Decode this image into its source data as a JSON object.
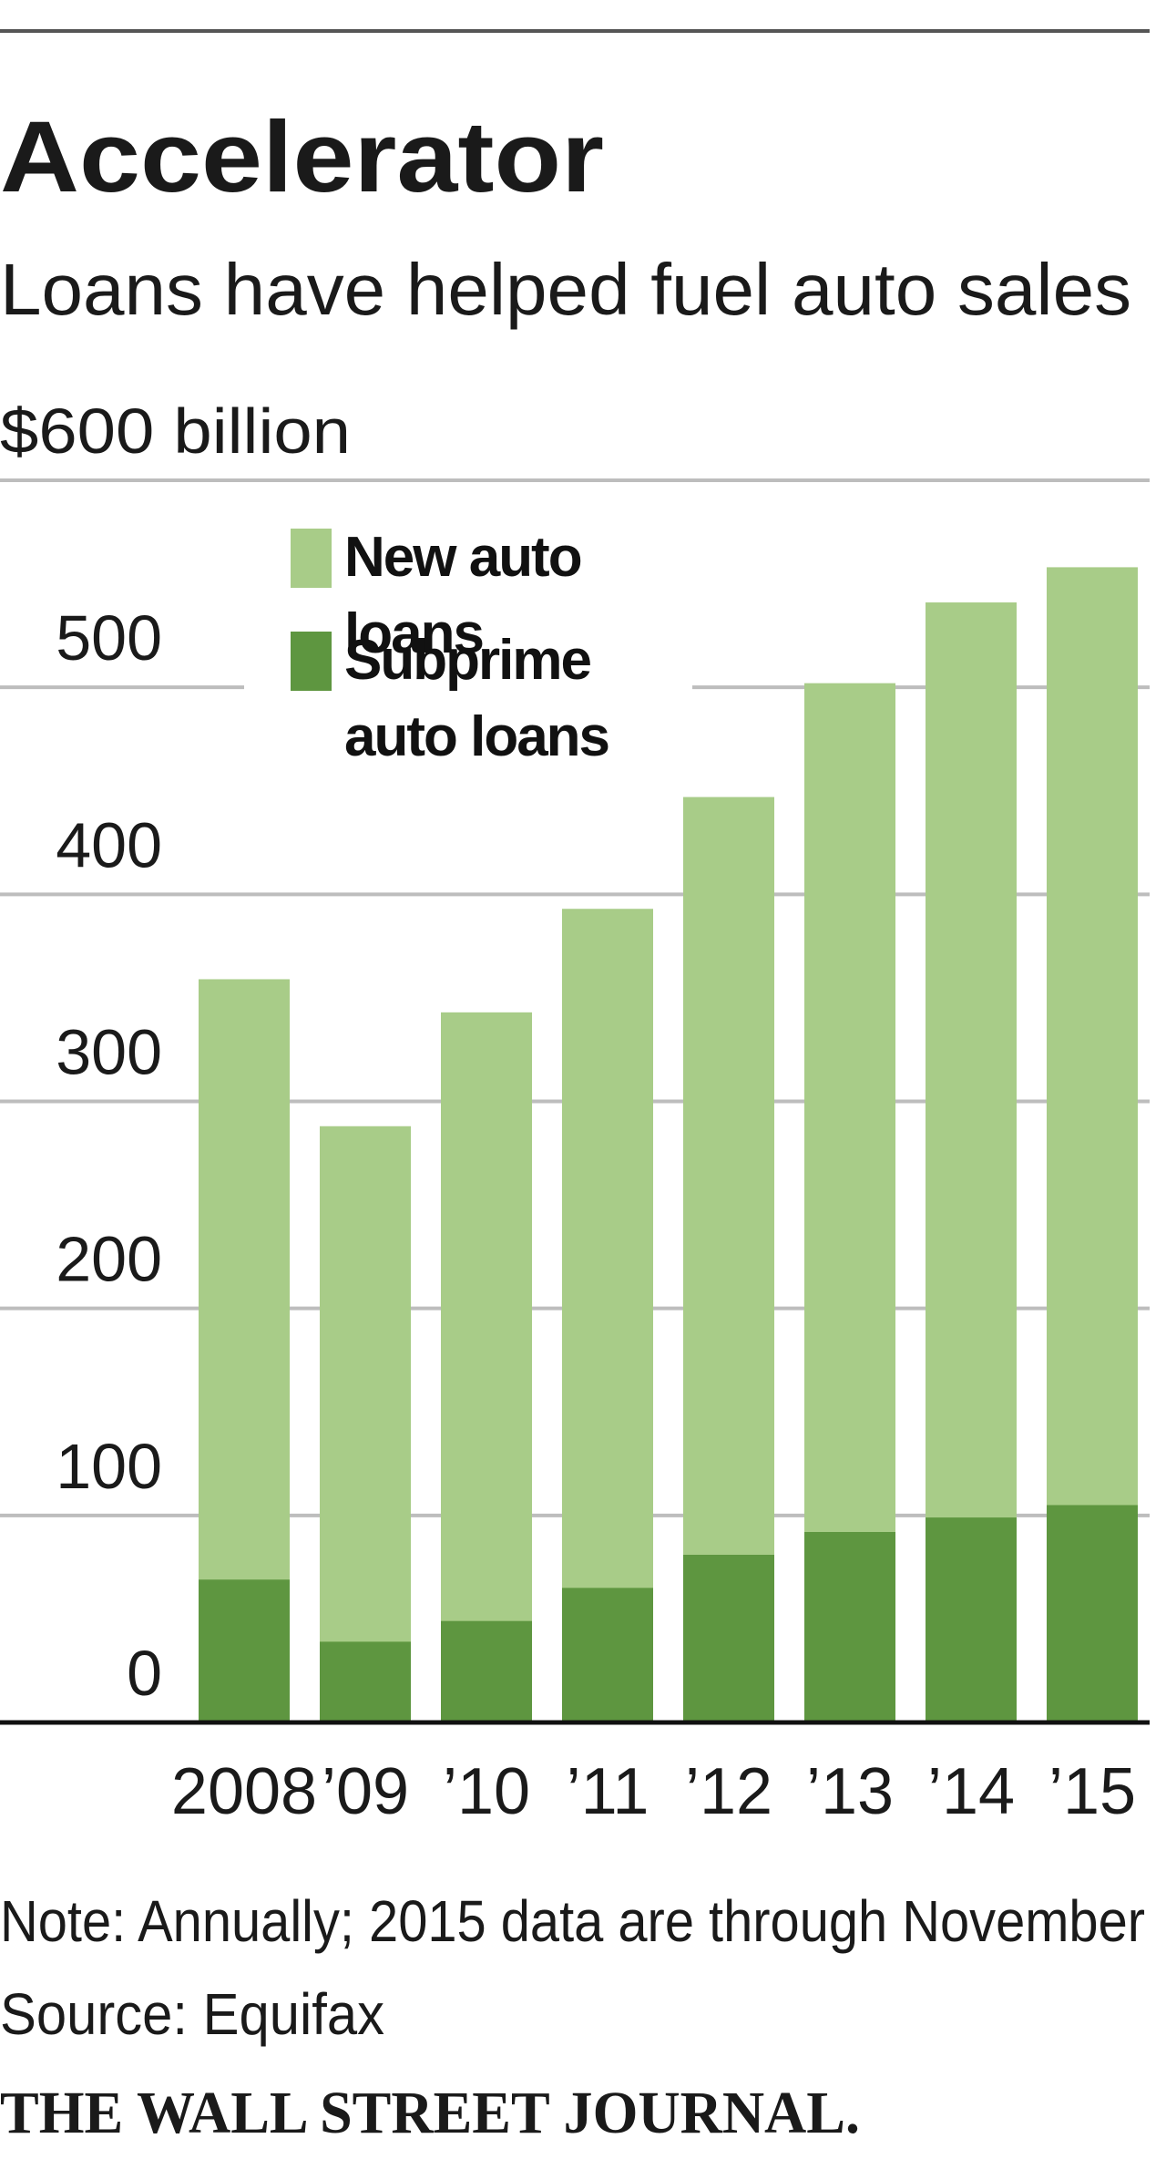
{
  "chart_data": {
    "type": "bar",
    "title": "Accelerator",
    "subtitle": "Loans have helped fuel auto sales",
    "categories": [
      "2008",
      "’09",
      "’10",
      "’11",
      "’12",
      "’13",
      "’14",
      "’15"
    ],
    "series": [
      {
        "name": "New auto loans",
        "color": "#a8cc88",
        "values": [
          359,
          288,
          343,
          393,
          447,
          502,
          541,
          558
        ]
      },
      {
        "name": "Subprime auto loans",
        "color": "#5e9640",
        "values": [
          69,
          39,
          49,
          65,
          81,
          92,
          99,
          105
        ]
      }
    ],
    "ylim": [
      0,
      600
    ],
    "yticks": [
      0,
      100,
      200,
      300,
      400,
      500,
      {
        "value": 600,
        "label": "$600 billion"
      }
    ],
    "grid": true,
    "note": "Note: Annually; 2015 data are through November",
    "source": "Source: Equifax",
    "publisher": "THE WALL STREET JOURNAL."
  }
}
